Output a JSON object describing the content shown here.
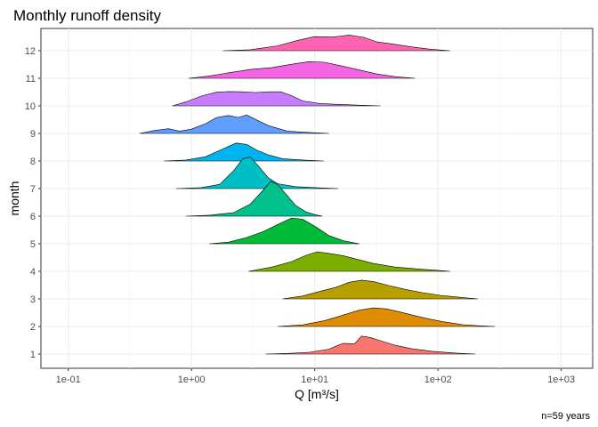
{
  "chart_data": {
    "type": "ridgeline",
    "title": "Monthly runoff density",
    "xlabel": "Q [m³/s]",
    "ylabel": "month",
    "caption": "n=59 years",
    "x_scale": "log10",
    "xlim": [
      0.06,
      1800
    ],
    "x_ticks": [
      {
        "value": 0.1,
        "label": "1e-01"
      },
      {
        "value": 1,
        "label": "1e+00"
      },
      {
        "value": 10,
        "label": "1e+01"
      },
      {
        "value": 100,
        "label": "1e+02"
      },
      {
        "value": 1000,
        "label": "1e+03"
      }
    ],
    "y_categories": [
      "1",
      "2",
      "3",
      "4",
      "5",
      "6",
      "7",
      "8",
      "9",
      "10",
      "11",
      "12"
    ],
    "grid": true,
    "series": [
      {
        "month": "1",
        "color": "#F8766D",
        "density": [
          [
            4,
            0.0
          ],
          [
            6,
            0.03
          ],
          [
            9,
            0.09
          ],
          [
            13,
            0.25
          ],
          [
            17,
            0.55
          ],
          [
            21,
            0.52
          ],
          [
            24,
            0.92
          ],
          [
            28,
            0.85
          ],
          [
            35,
            0.66
          ],
          [
            45,
            0.45
          ],
          [
            60,
            0.28
          ],
          [
            90,
            0.14
          ],
          [
            140,
            0.05
          ],
          [
            200,
            0.0
          ]
        ]
      },
      {
        "month": "2",
        "color": "#DE8C00",
        "density": [
          [
            5,
            0.0
          ],
          [
            8,
            0.08
          ],
          [
            12,
            0.3
          ],
          [
            17,
            0.58
          ],
          [
            23,
            0.83
          ],
          [
            30,
            0.95
          ],
          [
            38,
            0.9
          ],
          [
            48,
            0.76
          ],
          [
            62,
            0.58
          ],
          [
            80,
            0.42
          ],
          [
            110,
            0.24
          ],
          [
            160,
            0.09
          ],
          [
            220,
            0.03
          ],
          [
            290,
            0.0
          ]
        ]
      },
      {
        "month": "3",
        "color": "#B79F00",
        "density": [
          [
            5.5,
            0.0
          ],
          [
            8,
            0.15
          ],
          [
            11,
            0.38
          ],
          [
            15,
            0.6
          ],
          [
            19,
            0.85
          ],
          [
            24,
            0.96
          ],
          [
            30,
            0.88
          ],
          [
            40,
            0.68
          ],
          [
            55,
            0.48
          ],
          [
            75,
            0.32
          ],
          [
            105,
            0.18
          ],
          [
            150,
            0.08
          ],
          [
            210,
            0.0
          ]
        ]
      },
      {
        "month": "4",
        "color": "#7CAE00",
        "density": [
          [
            2.9,
            0.0
          ],
          [
            4.5,
            0.22
          ],
          [
            6.5,
            0.5
          ],
          [
            8.5,
            0.82
          ],
          [
            10.5,
            1.0
          ],
          [
            13,
            0.92
          ],
          [
            17,
            0.8
          ],
          [
            22,
            0.62
          ],
          [
            30,
            0.4
          ],
          [
            45,
            0.22
          ],
          [
            70,
            0.12
          ],
          [
            100,
            0.05
          ],
          [
            125,
            0.0
          ]
        ]
      },
      {
        "month": "5",
        "color": "#00BA38",
        "density": [
          [
            1.4,
            0.0
          ],
          [
            2,
            0.08
          ],
          [
            2.8,
            0.32
          ],
          [
            3.8,
            0.62
          ],
          [
            5,
            0.98
          ],
          [
            6.5,
            1.32
          ],
          [
            8,
            1.25
          ],
          [
            10,
            0.9
          ],
          [
            13,
            0.42
          ],
          [
            17,
            0.16
          ],
          [
            21,
            0.04
          ],
          [
            23,
            0.0
          ]
        ]
      },
      {
        "month": "6",
        "color": "#00C08B",
        "density": [
          [
            0.9,
            0.0
          ],
          [
            1.4,
            0.05
          ],
          [
            2.2,
            0.18
          ],
          [
            3.0,
            0.62
          ],
          [
            3.8,
            1.32
          ],
          [
            4.4,
            1.78
          ],
          [
            5.0,
            1.62
          ],
          [
            5.8,
            1.15
          ],
          [
            7,
            0.55
          ],
          [
            8.5,
            0.22
          ],
          [
            10,
            0.08
          ],
          [
            11.5,
            0.0
          ]
        ]
      },
      {
        "month": "7",
        "color": "#00BFC4",
        "density": [
          [
            0.75,
            0.0
          ],
          [
            1.2,
            0.05
          ],
          [
            1.7,
            0.22
          ],
          [
            2.2,
            0.92
          ],
          [
            2.6,
            1.52
          ],
          [
            3.0,
            1.62
          ],
          [
            3.5,
            1.15
          ],
          [
            4.2,
            0.55
          ],
          [
            5,
            0.25
          ],
          [
            7,
            0.1
          ],
          [
            10,
            0.05
          ],
          [
            15.5,
            0.0
          ]
        ]
      },
      {
        "month": "8",
        "color": "#00B4F0",
        "density": [
          [
            0.6,
            0.0
          ],
          [
            0.9,
            0.05
          ],
          [
            1.3,
            0.22
          ],
          [
            1.8,
            0.62
          ],
          [
            2.3,
            0.92
          ],
          [
            2.8,
            0.85
          ],
          [
            3.4,
            0.55
          ],
          [
            4.2,
            0.32
          ],
          [
            5.5,
            0.12
          ],
          [
            8,
            0.05
          ],
          [
            11.8,
            0.0
          ]
        ]
      },
      {
        "month": "9",
        "color": "#619CFF",
        "density": [
          [
            0.38,
            0.0
          ],
          [
            0.5,
            0.15
          ],
          [
            0.65,
            0.24
          ],
          [
            0.8,
            0.12
          ],
          [
            1.0,
            0.22
          ],
          [
            1.3,
            0.5
          ],
          [
            1.6,
            0.82
          ],
          [
            2.0,
            0.92
          ],
          [
            2.4,
            0.82
          ],
          [
            2.8,
            0.95
          ],
          [
            3.3,
            0.72
          ],
          [
            4.2,
            0.4
          ],
          [
            6,
            0.12
          ],
          [
            9,
            0.05
          ],
          [
            13,
            0.0
          ]
        ]
      },
      {
        "month": "10",
        "color": "#C77CFF",
        "density": [
          [
            0.7,
            0.0
          ],
          [
            0.9,
            0.2
          ],
          [
            1.2,
            0.5
          ],
          [
            1.6,
            0.7
          ],
          [
            2.0,
            0.73
          ],
          [
            2.6,
            0.72
          ],
          [
            3.3,
            0.68
          ],
          [
            4.2,
            0.72
          ],
          [
            5.3,
            0.72
          ],
          [
            6.5,
            0.52
          ],
          [
            8,
            0.25
          ],
          [
            11,
            0.12
          ],
          [
            18,
            0.06
          ],
          [
            34,
            0.0
          ]
        ]
      },
      {
        "month": "11",
        "color": "#F564E3",
        "density": [
          [
            0.95,
            0.0
          ],
          [
            1.4,
            0.12
          ],
          [
            2,
            0.28
          ],
          [
            3,
            0.45
          ],
          [
            4.5,
            0.55
          ],
          [
            6.5,
            0.72
          ],
          [
            9,
            0.85
          ],
          [
            12,
            0.82
          ],
          [
            16,
            0.65
          ],
          [
            22,
            0.45
          ],
          [
            32,
            0.22
          ],
          [
            45,
            0.08
          ],
          [
            65,
            0.0
          ]
        ]
      },
      {
        "month": "12",
        "color": "#FF64B0",
        "density": [
          [
            1.8,
            0.0
          ],
          [
            3,
            0.05
          ],
          [
            5,
            0.25
          ],
          [
            7.5,
            0.55
          ],
          [
            10,
            0.72
          ],
          [
            14,
            0.7
          ],
          [
            19,
            0.8
          ],
          [
            25,
            0.68
          ],
          [
            32,
            0.45
          ],
          [
            42,
            0.35
          ],
          [
            60,
            0.2
          ],
          [
            85,
            0.08
          ],
          [
            125,
            0.0
          ]
        ]
      }
    ]
  }
}
